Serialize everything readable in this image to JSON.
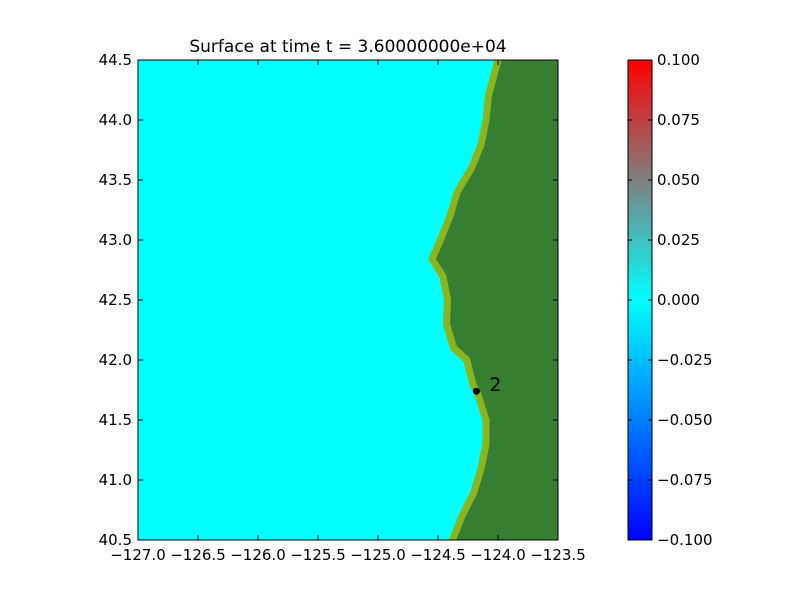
{
  "chart_data": {
    "type": "heatmap",
    "title": "Surface at time t = 3.60000000e+04",
    "xlabel": "",
    "ylabel": "",
    "xlim": [
      -127.0,
      -123.5
    ],
    "ylim": [
      40.5,
      44.5
    ],
    "x_ticks": [
      -127.0,
      -126.5,
      -126.0,
      -125.5,
      -125.0,
      -124.5,
      -124.0,
      -123.5
    ],
    "x_tick_labels": [
      "−127.0",
      "−126.5",
      "−126.0",
      "−125.5",
      "−125.0",
      "−124.5",
      "−124.0",
      "−123.5"
    ],
    "y_ticks": [
      40.5,
      41.0,
      41.5,
      42.0,
      42.5,
      43.0,
      43.5,
      44.0,
      44.5
    ],
    "y_tick_labels": [
      "40.5",
      "41.0",
      "41.5",
      "42.0",
      "42.5",
      "43.0",
      "43.5",
      "44.0",
      "44.5"
    ],
    "ocean_color": "#00ffff",
    "land_color": "#367f32",
    "lowland_color": "#8cb41e",
    "coastline": [
      [
        -124.0,
        44.5
      ],
      [
        -124.08,
        44.2
      ],
      [
        -124.1,
        44.0
      ],
      [
        -124.14,
        43.8
      ],
      [
        -124.22,
        43.6
      ],
      [
        -124.34,
        43.4
      ],
      [
        -124.4,
        43.2
      ],
      [
        -124.48,
        43.0
      ],
      [
        -124.55,
        42.84
      ],
      [
        -124.46,
        42.7
      ],
      [
        -124.42,
        42.5
      ],
      [
        -124.43,
        42.3
      ],
      [
        -124.37,
        42.1
      ],
      [
        -124.26,
        42.0
      ],
      [
        -124.21,
        41.8
      ],
      [
        -124.17,
        41.72
      ],
      [
        -124.1,
        41.5
      ],
      [
        -124.1,
        41.3
      ],
      [
        -124.14,
        41.1
      ],
      [
        -124.2,
        40.9
      ],
      [
        -124.3,
        40.7
      ],
      [
        -124.38,
        40.5
      ]
    ],
    "gauges": [
      {
        "label": "2",
        "x": -124.18,
        "y": 41.74
      }
    ],
    "colorbar": {
      "min": -0.1,
      "max": 0.1,
      "ticks": [
        0.1,
        0.075,
        0.05,
        0.025,
        0.0,
        -0.025,
        -0.05,
        -0.075,
        -0.1
      ],
      "tick_labels": [
        "0.100",
        "0.075",
        "0.050",
        "0.025",
        "0.000",
        "−0.025",
        "−0.050",
        "−0.075",
        "−0.100"
      ],
      "colors": [
        "#0000ff",
        "#00ffff",
        "#ff0000"
      ]
    }
  }
}
